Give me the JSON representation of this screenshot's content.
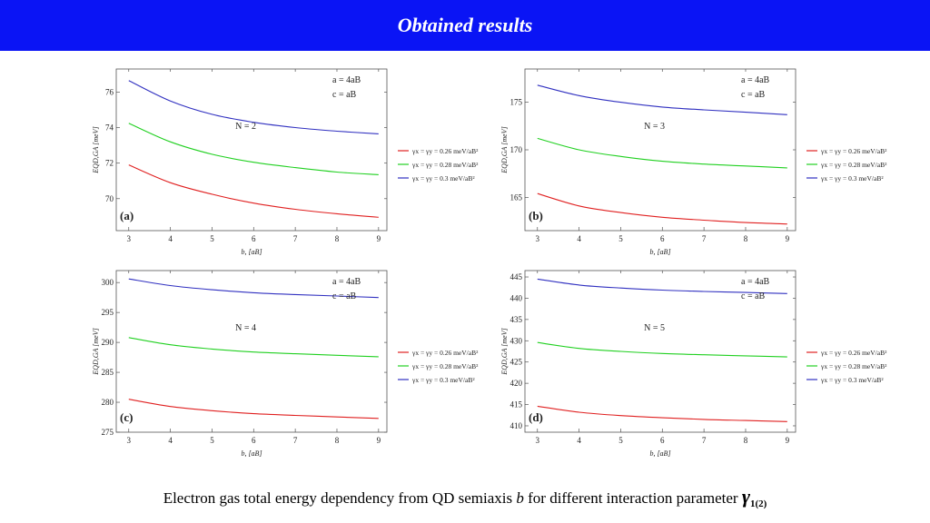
{
  "header": {
    "title": "Obtained results"
  },
  "caption": {
    "before": "Electron gas total energy dependency from QD semiaxis ",
    "b": "b",
    "after": " for different interaction parameter ",
    "gamma": "γ",
    "gamma_sub": "1(2)"
  },
  "legend_common": {
    "entries": [
      {
        "label": "γx = γy = 0.26 meV/aB²",
        "color": "#e02020"
      },
      {
        "label": "γx = γy = 0.28 meV/aB²",
        "color": "#20d020"
      },
      {
        "label": "γx = γy = 0.3 meV/aB²",
        "color": "#3030c0"
      }
    ]
  },
  "chart_data": [
    {
      "type": "line",
      "panel_label": "(a)",
      "annotation_n": "N = 2",
      "annotation_a": "a = 4aB",
      "annotation_c": "c = aB",
      "xlabel": "b, [aB]",
      "ylabel": "EQD,GA [meV]",
      "x": [
        3,
        4,
        5,
        6,
        7,
        8,
        9
      ],
      "xlim": [
        2.7,
        9.2
      ],
      "ylim": [
        68.2,
        77.3
      ],
      "xticks": [
        3,
        4,
        5,
        6,
        7,
        8,
        9
      ],
      "yticks": [
        70,
        72,
        74,
        76
      ],
      "series": [
        {
          "name": "γx = γy = 0.26 meV/aB²",
          "color": "#e02020",
          "values": [
            71.9,
            70.9,
            70.25,
            69.75,
            69.4,
            69.15,
            68.95
          ]
        },
        {
          "name": "γx = γy = 0.28 meV/aB²",
          "color": "#20d020",
          "values": [
            74.25,
            73.2,
            72.5,
            72.05,
            71.75,
            71.5,
            71.35
          ]
        },
        {
          "name": "γx = γy = 0.3 meV/aB²",
          "color": "#3030c0",
          "values": [
            76.65,
            75.5,
            74.75,
            74.3,
            74.0,
            73.8,
            73.65
          ]
        }
      ]
    },
    {
      "type": "line",
      "panel_label": "(b)",
      "annotation_n": "N = 3",
      "annotation_a": "a = 4aB",
      "annotation_c": "c = aB",
      "xlabel": "b, [aB]",
      "ylabel": "EQD,GA [meV]",
      "x": [
        3,
        4,
        5,
        6,
        7,
        8,
        9
      ],
      "xlim": [
        2.7,
        9.2
      ],
      "ylim": [
        161.5,
        178.5
      ],
      "xticks": [
        3,
        4,
        5,
        6,
        7,
        8,
        9
      ],
      "yticks": [
        165,
        170,
        175
      ],
      "series": [
        {
          "name": "γx = γy = 0.26 meV/aB²",
          "color": "#e02020",
          "values": [
            165.4,
            164.1,
            163.4,
            162.9,
            162.6,
            162.35,
            162.2
          ]
        },
        {
          "name": "γx = γy = 0.28 meV/aB²",
          "color": "#20d020",
          "values": [
            171.2,
            170.0,
            169.3,
            168.8,
            168.5,
            168.3,
            168.1
          ]
        },
        {
          "name": "γx = γy = 0.3 meV/aB²",
          "color": "#3030c0",
          "values": [
            176.8,
            175.7,
            175.0,
            174.5,
            174.2,
            173.95,
            173.7
          ]
        }
      ]
    },
    {
      "type": "line",
      "panel_label": "(c)",
      "annotation_n": "N = 4",
      "annotation_a": "a = 4aB",
      "annotation_c": "c = aB",
      "xlabel": "b, [aB]",
      "ylabel": "EQD,GA [meV]",
      "x": [
        3,
        4,
        5,
        6,
        7,
        8,
        9
      ],
      "xlim": [
        2.7,
        9.2
      ],
      "ylim": [
        275,
        302
      ],
      "xticks": [
        3,
        4,
        5,
        6,
        7,
        8,
        9
      ],
      "yticks": [
        275,
        280,
        285,
        290,
        295,
        300
      ],
      "series": [
        {
          "name": "γx = γy = 0.26 meV/aB²",
          "color": "#e02020",
          "values": [
            280.5,
            279.3,
            278.6,
            278.1,
            277.8,
            277.55,
            277.3
          ]
        },
        {
          "name": "γx = γy = 0.28 meV/aB²",
          "color": "#20d020",
          "values": [
            290.8,
            289.6,
            288.9,
            288.4,
            288.1,
            287.85,
            287.6
          ]
        },
        {
          "name": "γx = γy = 0.3 meV/aB²",
          "color": "#3030c0",
          "values": [
            300.6,
            299.5,
            298.8,
            298.3,
            298.0,
            297.75,
            297.5
          ]
        }
      ]
    },
    {
      "type": "line",
      "panel_label": "(d)",
      "annotation_n": "N = 5",
      "annotation_a": "a = 4aB",
      "annotation_c": "c = aB",
      "xlabel": "b, [aB]",
      "ylabel": "EQD,GA [meV]",
      "x": [
        3,
        4,
        5,
        6,
        7,
        8,
        9
      ],
      "xlim": [
        2.7,
        9.2
      ],
      "ylim": [
        408.5,
        446.5
      ],
      "xticks": [
        3,
        4,
        5,
        6,
        7,
        8,
        9
      ],
      "yticks": [
        410,
        415,
        420,
        425,
        430,
        435,
        440,
        445
      ],
      "series": [
        {
          "name": "γx = γy = 0.26 meV/aB²",
          "color": "#e02020",
          "values": [
            414.6,
            413.2,
            412.4,
            411.9,
            411.5,
            411.25,
            411.0
          ]
        },
        {
          "name": "γx = γy = 0.28 meV/aB²",
          "color": "#20d020",
          "values": [
            429.6,
            428.2,
            427.5,
            427.0,
            426.7,
            426.45,
            426.2
          ]
        },
        {
          "name": "γx = γy = 0.3 meV/aB²",
          "color": "#3030c0",
          "values": [
            444.5,
            443.1,
            442.4,
            441.9,
            441.6,
            441.35,
            441.1
          ]
        }
      ]
    }
  ]
}
